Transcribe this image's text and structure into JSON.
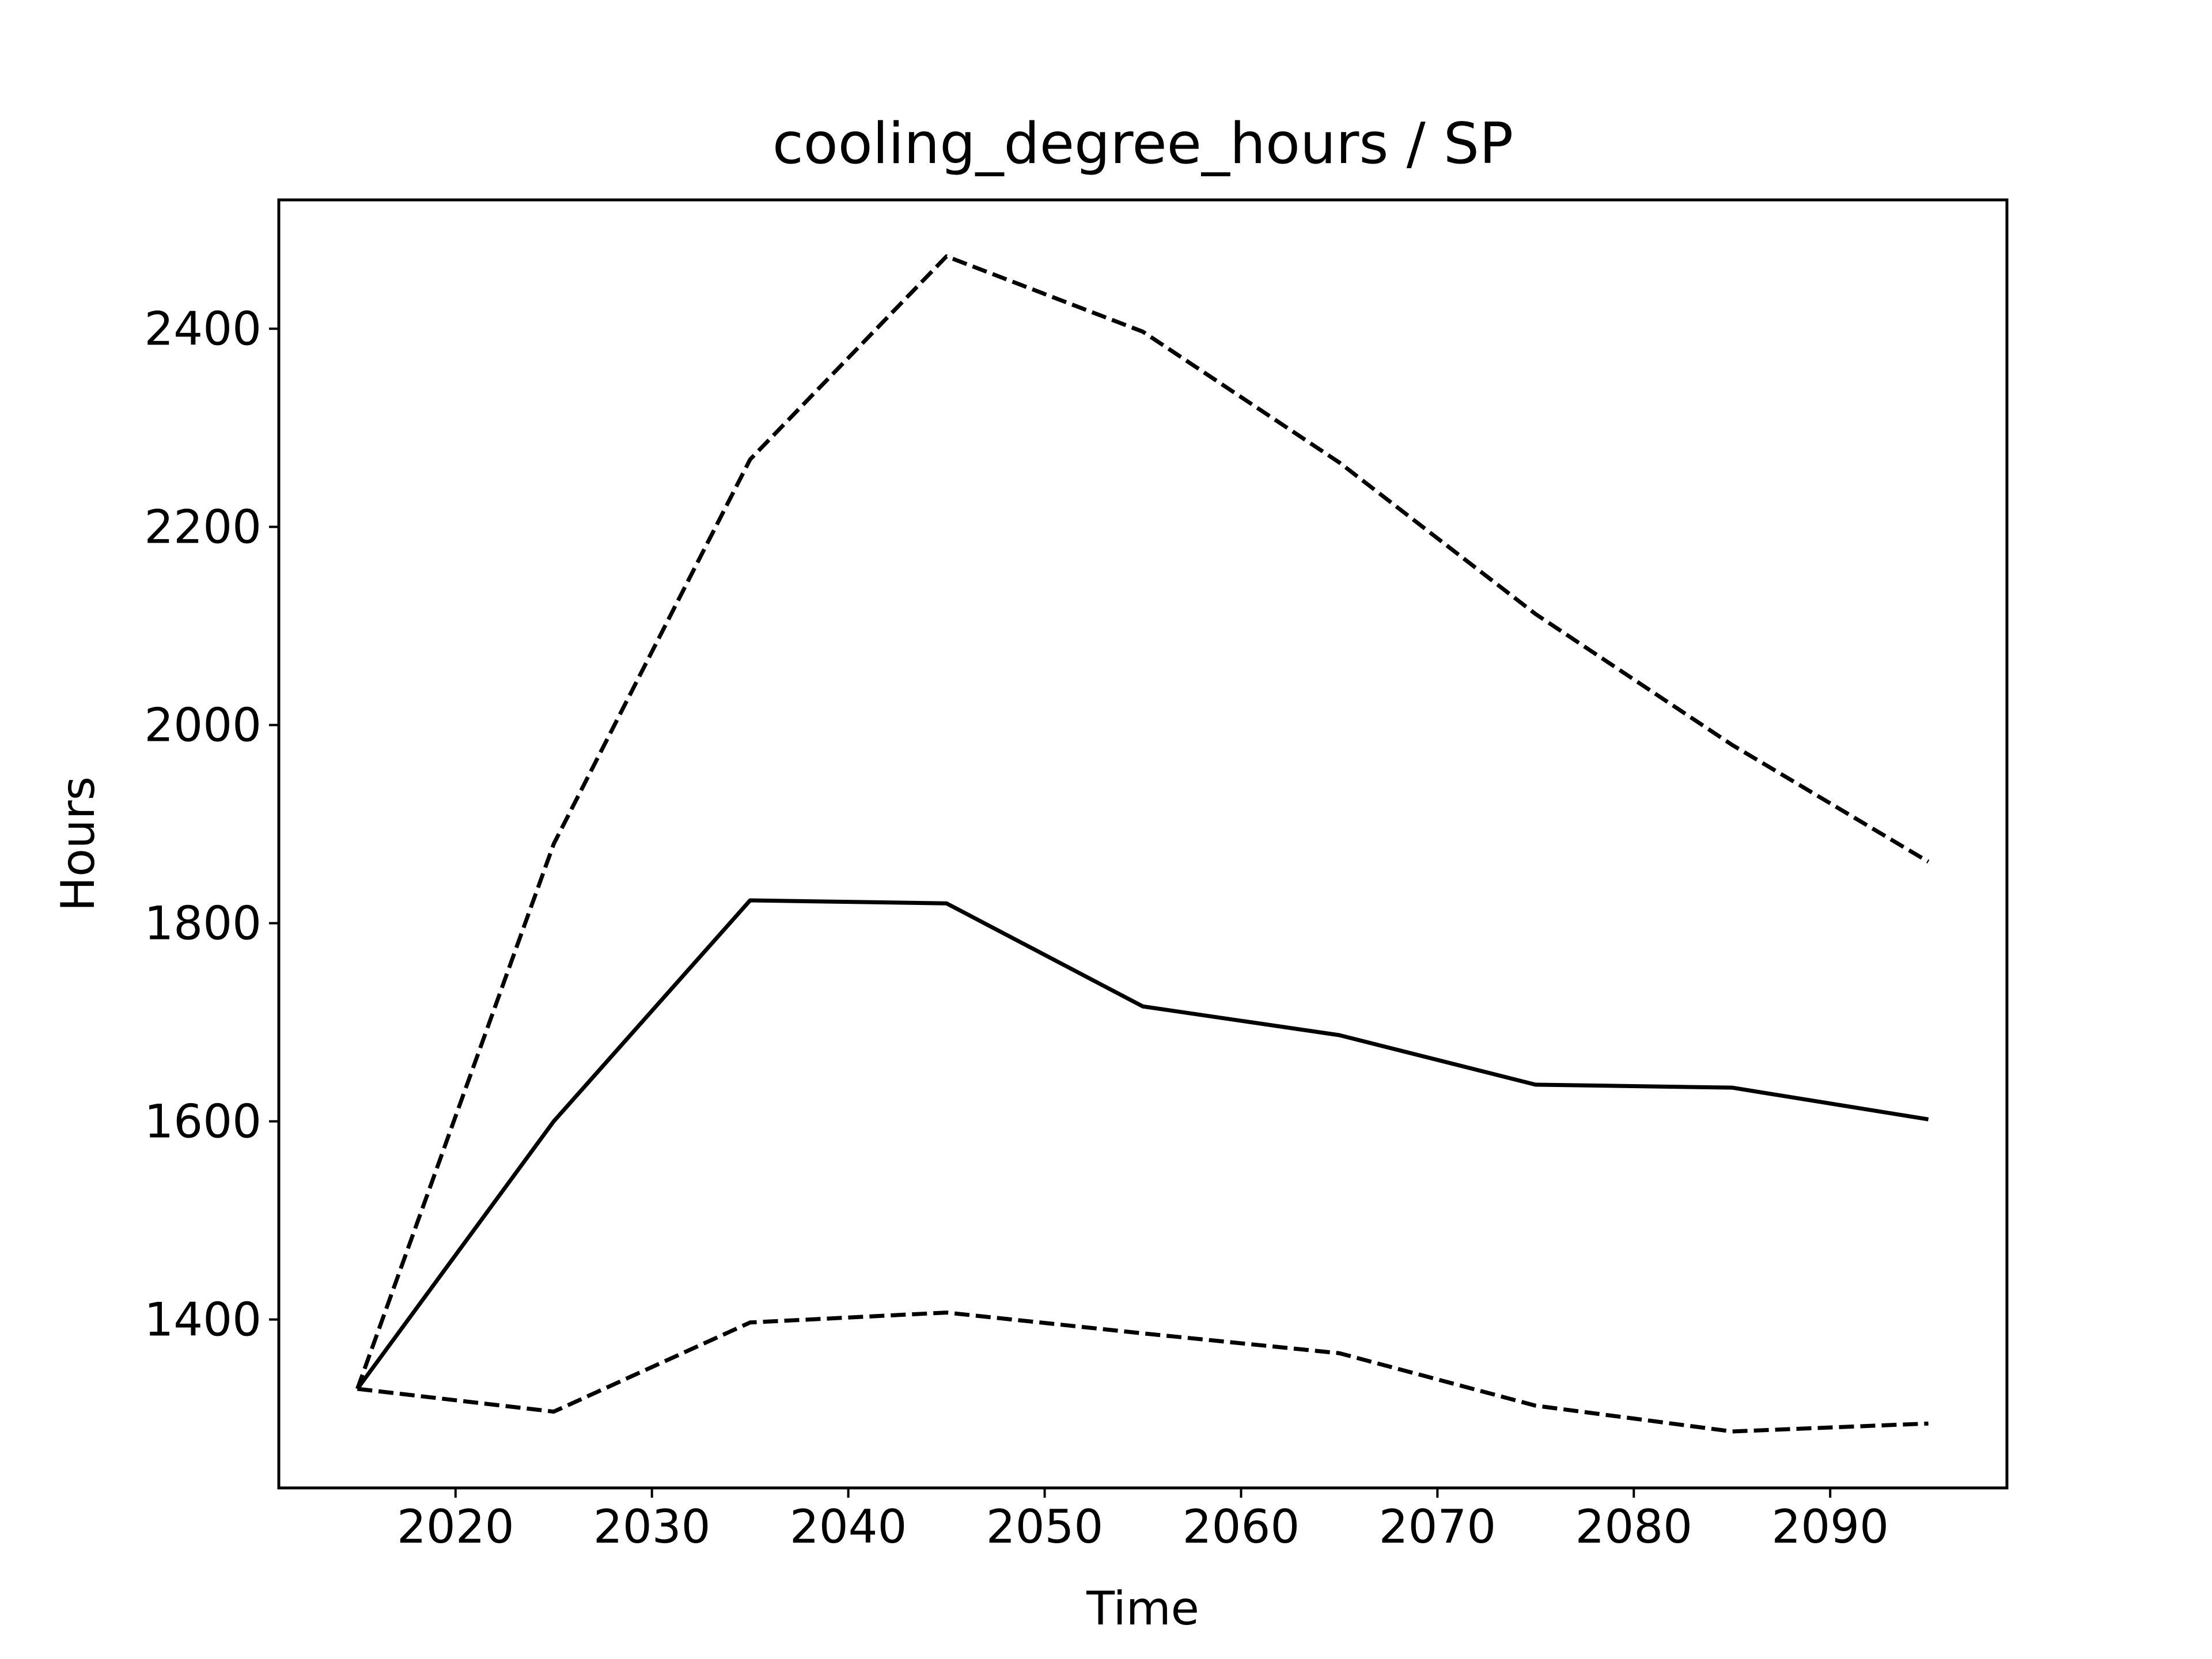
{
  "chart_data": {
    "type": "line",
    "title": "cooling_degree_hours / SP",
    "xlabel": "Time",
    "ylabel": "Hours",
    "xlim": [
      2011,
      2099
    ],
    "ylim": [
      1230,
      2530
    ],
    "grid": false,
    "x": [
      2015,
      2025,
      2035,
      2045,
      2055,
      2065,
      2075,
      2085,
      2095
    ],
    "x_ticks": [
      2020,
      2030,
      2040,
      2050,
      2060,
      2070,
      2080,
      2090
    ],
    "y_ticks": [
      1400,
      1600,
      1800,
      2000,
      2200,
      2400
    ],
    "series": [
      {
        "style": "dashed",
        "color": "#000000",
        "values": [
          1330,
          1880,
          2268,
          2473,
          2397,
          2265,
          2112,
          1980,
          1862
        ]
      },
      {
        "style": "solid",
        "color": "#000000",
        "values": [
          1330,
          1600,
          1823,
          1820,
          1716,
          1687,
          1637,
          1634,
          1602
        ]
      },
      {
        "style": "dashed",
        "color": "#000000",
        "values": [
          1330,
          1307,
          1397,
          1407,
          1386,
          1366,
          1313,
          1287,
          1295
        ]
      }
    ]
  }
}
